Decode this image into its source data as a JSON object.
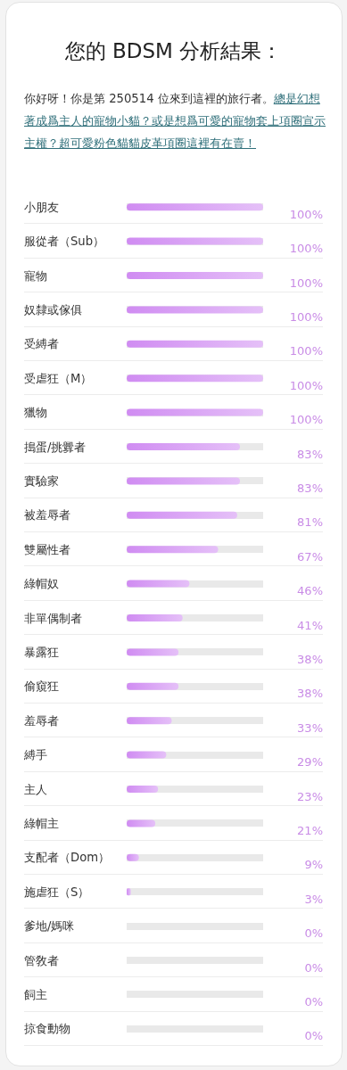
{
  "chart_data": {
    "type": "bar",
    "orientation": "horizontal",
    "title": "您的 BDSM 分析結果：",
    "subtitle": "你好呀！你是第 250514 位來到這裡的旅行者。",
    "annotations": [
      "總是幻想著成爲主人的寵物小貓？或是想爲可愛的寵物套上項圈宣示主權？超可愛粉色貓貓皮革項圈這裡有在賣！"
    ],
    "categories": [
      "小朋友",
      "服從者（Sub）",
      "寵物",
      "奴隸或傢俱",
      "受縛者",
      "受虐狂（M）",
      "獵物",
      "搗蛋/挑釁者",
      "實驗家",
      "被羞辱者",
      "雙屬性者",
      "綠帽奴",
      "非單偶制者",
      "暴露狂",
      "偷窺狂",
      "羞辱者",
      "縛手",
      "主人",
      "綠帽主",
      "支配者（Dom）",
      "施虐狂（S）",
      "爹地/媽咪",
      "管敎者",
      "飼主",
      "掠食動物"
    ],
    "values": [
      100,
      100,
      100,
      100,
      100,
      100,
      100,
      83,
      83,
      81,
      67,
      46,
      41,
      38,
      38,
      33,
      29,
      23,
      21,
      9,
      3,
      0,
      0,
      0,
      0
    ],
    "value_labels": [
      "100%",
      "100%",
      "100%",
      "100%",
      "100%",
      "100%",
      "100%",
      "83%",
      "83%",
      "81%",
      "67%",
      "46%",
      "41%",
      "38%",
      "38%",
      "33%",
      "29%",
      "23%",
      "21%",
      "9%",
      "3%",
      "0%",
      "0%",
      "0%",
      "0%"
    ],
    "color": "#d08cf2",
    "xlim": [
      0,
      100
    ],
    "tick_labels": "y"
  }
}
